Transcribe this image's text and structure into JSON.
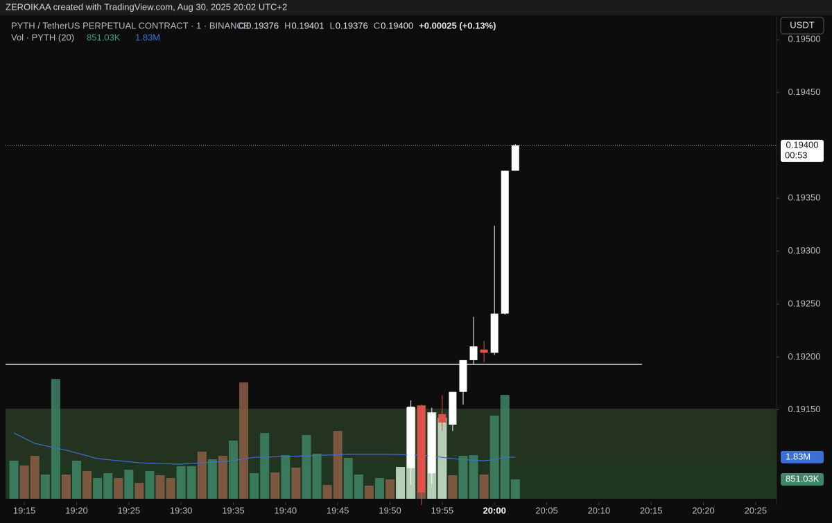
{
  "chart_data": {
    "type": "candlestick",
    "header": "ZEROIKAA created with TradingView.com, Aug 30, 2025 20:02 UTC+2",
    "symbol": "PYTH / TetherUS PERPETUAL CONTRACT · 1 · BINANCE",
    "legend_ohlc": [
      [
        "O",
        "0.19376"
      ],
      [
        "H",
        "0.19401"
      ],
      [
        "L",
        "0.19376"
      ],
      [
        "C",
        "0.19400"
      ]
    ],
    "change": "+0.00025 (+0.13%)",
    "volume_legend": "Vol · PYTH (20)",
    "currency_button": "USDT",
    "countdown": "00:53",
    "ylim": [
      0.19066,
      0.19521
    ],
    "yticks": [
      {
        "value": 0.195,
        "label": "0.19500"
      },
      {
        "value": 0.1945,
        "label": "0.19450"
      },
      {
        "value": 0.1935,
        "label": "0.19350"
      },
      {
        "value": 0.193,
        "label": "0.19300"
      },
      {
        "value": 0.1925,
        "label": "0.19250"
      },
      {
        "value": 0.192,
        "label": "0.19200"
      },
      {
        "value": 0.1915,
        "label": "0.19150"
      }
    ],
    "xlim": [
      "19:13",
      "20:27"
    ],
    "xticks": [
      "19:15",
      "19:20",
      "19:25",
      "19:30",
      "19:35",
      "19:40",
      "19:45",
      "19:50",
      "19:55",
      "20:00",
      "20:05",
      "20:10",
      "20:15",
      "20:20",
      "20:25"
    ],
    "last_price": {
      "value": 0.194,
      "label": "0.19400"
    },
    "candles": {
      "x": [
        "19:52",
        "19:53",
        "19:54",
        "19:55",
        "19:56",
        "19:57",
        "19:58",
        "19:59",
        "20:00",
        "20:01",
        "20:02"
      ],
      "open": [
        0.19095,
        0.19154,
        0.1909,
        0.19146,
        0.19136,
        0.19167,
        0.19197,
        0.19207,
        0.19204,
        0.19241,
        0.19376
      ],
      "high": [
        0.19159,
        0.19155,
        0.19152,
        0.19164,
        0.19167,
        0.19197,
        0.19238,
        0.19215,
        0.19324,
        0.19376,
        0.19401
      ],
      "low": [
        0.19079,
        0.1906,
        0.1908,
        0.1913,
        0.1913,
        0.19155,
        0.19193,
        0.19195,
        0.19202,
        0.1924,
        0.19376
      ],
      "close": [
        0.19153,
        0.19072,
        0.19147,
        0.19138,
        0.19167,
        0.19197,
        0.1921,
        0.19204,
        0.19241,
        0.19376,
        0.194
      ],
      "up_color": "#ffffff",
      "down_color": "#e0504a"
    },
    "volume": {
      "x": [
        "19:14",
        "19:15",
        "19:16",
        "19:17",
        "19:18",
        "19:19",
        "19:20",
        "19:21",
        "19:22",
        "19:23",
        "19:24",
        "19:25",
        "19:26",
        "19:27",
        "19:28",
        "19:29",
        "19:30",
        "19:31",
        "19:32",
        "19:33",
        "19:34",
        "19:35",
        "19:36",
        "19:37",
        "19:38",
        "19:39",
        "19:40",
        "19:41",
        "19:42",
        "19:43",
        "19:44",
        "19:45",
        "19:46",
        "19:47",
        "19:48",
        "19:49",
        "19:50",
        "19:51",
        "19:52",
        "19:53",
        "19:54",
        "19:55",
        "19:56",
        "19:57",
        "19:58",
        "19:59",
        "20:00",
        "20:01",
        "20:02"
      ],
      "values": [
        1672000,
        1459000,
        1885000,
        1064000,
        5259000,
        1064000,
        1672000,
        1216000,
        912000,
        1125000,
        912000,
        1277000,
        699000,
        1216000,
        1034000,
        912000,
        1429000,
        1429000,
        2067000,
        1733000,
        1885000,
        2554000,
        5107000,
        1125000,
        2888000,
        1155000,
        1915000,
        1368000,
        2797000,
        1976000,
        608000,
        2979000,
        1794000,
        1064000,
        578000,
        912000,
        851000,
        1398000,
        4013000,
        4104000,
        3800000,
        3557000,
        1034000,
        1885000,
        1915000,
        1064000,
        3648000,
        4560000,
        851030
      ],
      "value_labels": {
        "48": "851.03K"
      },
      "colors": [
        "#3f8566",
        "#8c5e45",
        "#8c5e45",
        "#3f8566",
        "#3f8566",
        "#8c5e45",
        "#3f8566",
        "#8c5e45",
        "#3f8566",
        "#3f8566",
        "#8c5e45",
        "#3f8566",
        "#8c5e45",
        "#3f8566",
        "#8c5e45",
        "#8c5e45",
        "#3f8566",
        "#3f8566",
        "#8c5e45",
        "#3f8566",
        "#8c5e45",
        "#3f8566",
        "#8c5e45",
        "#3f8566",
        "#3f8566",
        "#8c5e45",
        "#3f8566",
        "#8c5e45",
        "#3f8566",
        "#3f8566",
        "#8c5e45",
        "#8c5e45",
        "#3f8566",
        "#3f8566",
        "#8c5e45",
        "#3f8566",
        "#8c5e45",
        "#cfe9d3",
        "#cfe9d3",
        "#8c5e45",
        "#cfe9d3",
        "#cfe9d3",
        "#8c5e45",
        "#3f8566",
        "#3f8566",
        "#8c5e45",
        "#3f8566",
        "#3f8566",
        "#3f8566"
      ],
      "ylim": [
        0,
        8000000
      ],
      "ma_name": "(20)",
      "ma_color": "#3b6fd6",
      "ma": [
        2890000,
        2660000,
        2430000,
        2330000,
        2230000,
        2130000,
        2010000,
        1890000,
        1760000,
        1720000,
        1670000,
        1630000,
        1580000,
        1560000,
        1550000,
        1530000,
        1520000,
        1550000,
        1580000,
        1610000,
        1640000,
        1670000,
        1750000,
        1820000,
        1830000,
        1840000,
        1850000,
        1870000,
        1880000,
        1900000,
        1920000,
        1930000,
        1950000,
        1950000,
        1950000,
        1950000,
        1950000,
        1940000,
        1930000,
        1920000,
        1870000,
        1820000,
        1760000,
        1720000,
        1690000,
        1670000,
        1720000,
        1820000,
        1830000
      ],
      "ma_label": "1.83M"
    }
  }
}
